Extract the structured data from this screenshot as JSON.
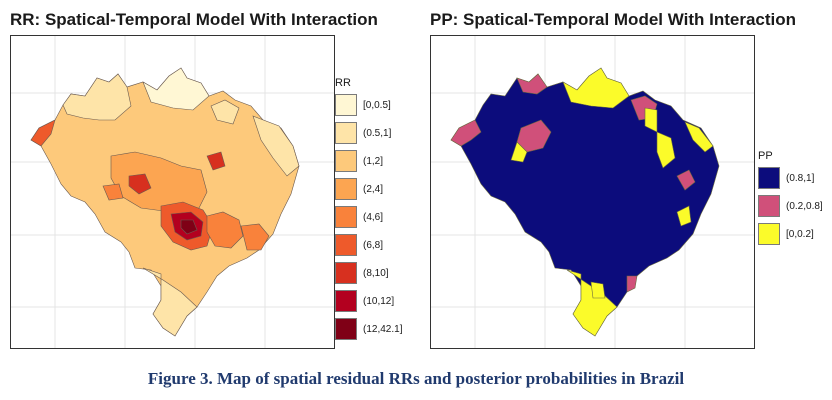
{
  "left_panel": {
    "title": "RR: Spatical-Temporal Model With Interaction",
    "legend_title": "RR",
    "legend": [
      {
        "label": "[0,0.5]",
        "color": "#fff7d4"
      },
      {
        "label": "(0.5,1]",
        "color": "#fee4a8"
      },
      {
        "label": "(1,2]",
        "color": "#fdc97b"
      },
      {
        "label": "(2,4]",
        "color": "#fca551"
      },
      {
        "label": "(4,6]",
        "color": "#f9823b"
      },
      {
        "label": "(6,8]",
        "color": "#ee5a2b"
      },
      {
        "label": "(8,10]",
        "color": "#d7301f"
      },
      {
        "label": "(10,12]",
        "color": "#b3001f"
      },
      {
        "label": "(12,42.1]",
        "color": "#7f0016"
      }
    ]
  },
  "right_panel": {
    "title": "PP: Spatical-Temporal Model With Interaction",
    "legend_title": "PP",
    "legend": [
      {
        "label": "(0.8,1]",
        "color": "#0c0c7c"
      },
      {
        "label": "(0.2,0.8]",
        "color": "#d0507a"
      },
      {
        "label": "[0,0.2]",
        "color": "#fbfb2a"
      }
    ]
  },
  "caption": "Figure 3. Map of spatial residual RRs and posterior probabilities in Brazil"
}
